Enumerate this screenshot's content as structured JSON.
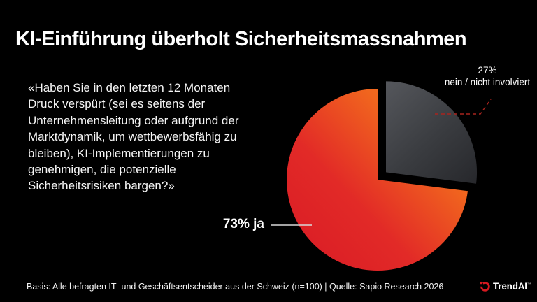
{
  "title": "KI-Einführung überholt Sicherheitsmassnahmen",
  "quote": "«Haben Sie in den letzten 12 Monaten\nDruck verspürt (sei es seitens der\nUnternehmensleitung oder aufgrund der\nMarktdynamik, um wettbewerbsfähig zu\nbleiben), KI-Implementierungen zu\ngenehmigen, die potenzielle\nSicherheitsrisiken bargen?»",
  "chart_data": {
    "type": "pie",
    "start_angle_deg": 0,
    "direction": "clockwise",
    "legend": "none",
    "slices": [
      {
        "label": "nein / nicht involviert",
        "value": 27,
        "exploded": true,
        "gradient": [
          "#55575c",
          "#3a3c40",
          "#232428"
        ],
        "callout_pct": "27%",
        "callout_label": "nein / nicht involviert"
      },
      {
        "label": "ja",
        "value": 73,
        "exploded": false,
        "gradient": [
          "#f6861f",
          "#f1661e",
          "#e22a27",
          "#dc2026"
        ],
        "callout": "73% ja"
      }
    ]
  },
  "footer": {
    "source_line": "Basis: Alle befragten IT- und Geschäftsentscheider aus der Schweiz (n=100) | Quelle: Sapio Research 2026"
  },
  "logo": {
    "text": "TrendAI",
    "trademark": "™",
    "mark_color": "#d71920"
  },
  "colors": {
    "background": "#000000",
    "text": "#ffffff",
    "leader_yes": "#d9d9d9",
    "leader_no": "#a8241e"
  }
}
